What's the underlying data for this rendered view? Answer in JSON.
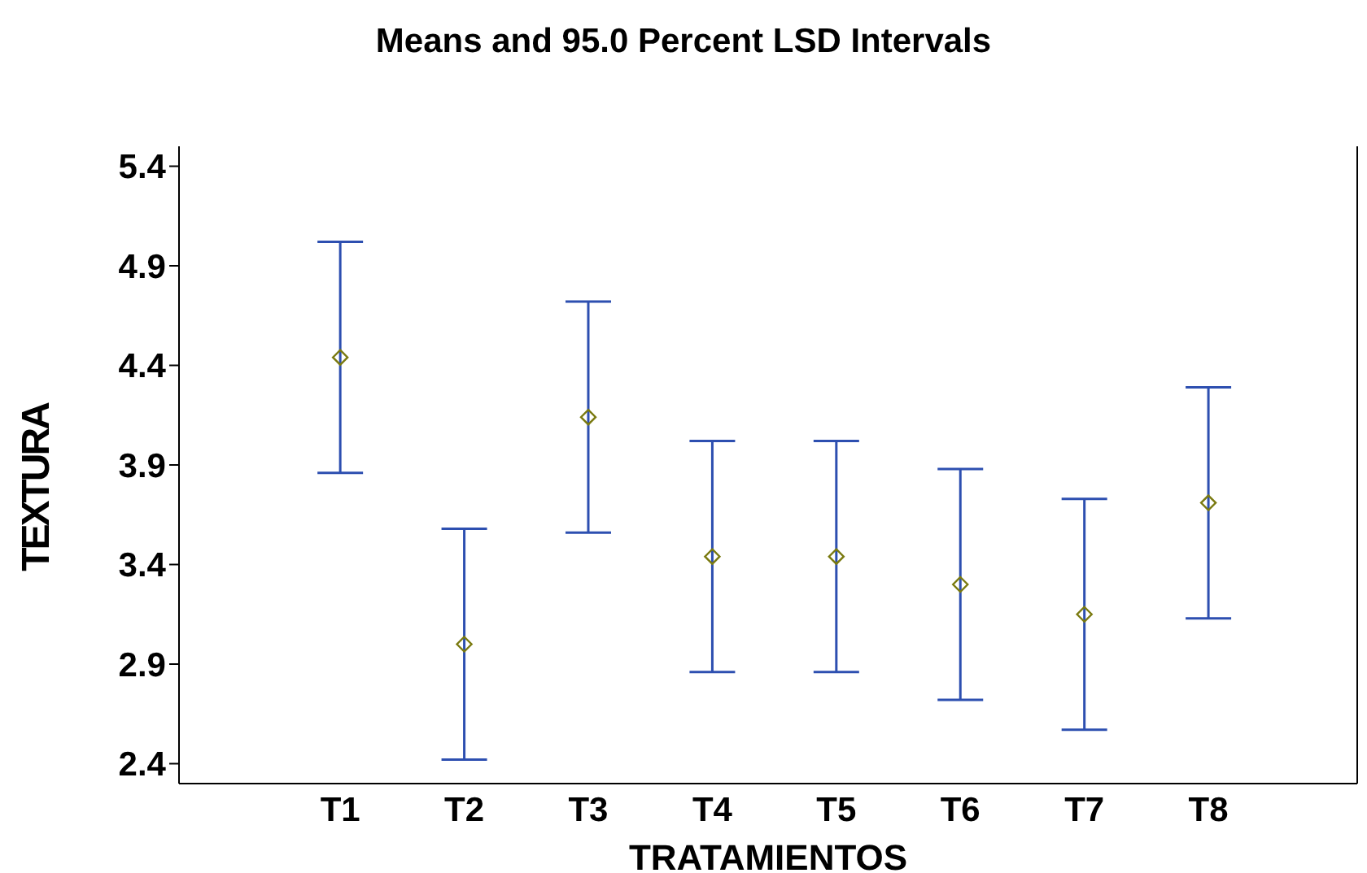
{
  "chart_data": {
    "type": "scatter",
    "title": "Means and 95.0 Percent LSD Intervals",
    "xlabel": "TRATAMIENTOS",
    "ylabel": "TEXTURA",
    "categories": [
      "T1",
      "T2",
      "T3",
      "T4",
      "T5",
      "T6",
      "T7",
      "T8"
    ],
    "series": [
      {
        "color": "#7a7a10",
        "values": [
          4.44,
          3.0,
          4.14,
          3.44,
          3.44,
          3.3,
          3.15,
          3.71
        ],
        "errors": [
          0.58,
          0.58,
          0.58,
          0.58,
          0.58,
          0.58,
          0.58,
          0.58
        ]
      }
    ],
    "marker": "diamond",
    "ylim": [
      2.3,
      5.5
    ],
    "yticks": [
      2.4,
      2.9,
      3.4,
      3.9,
      4.4,
      4.9,
      5.4
    ],
    "grid": false,
    "legend": false
  }
}
